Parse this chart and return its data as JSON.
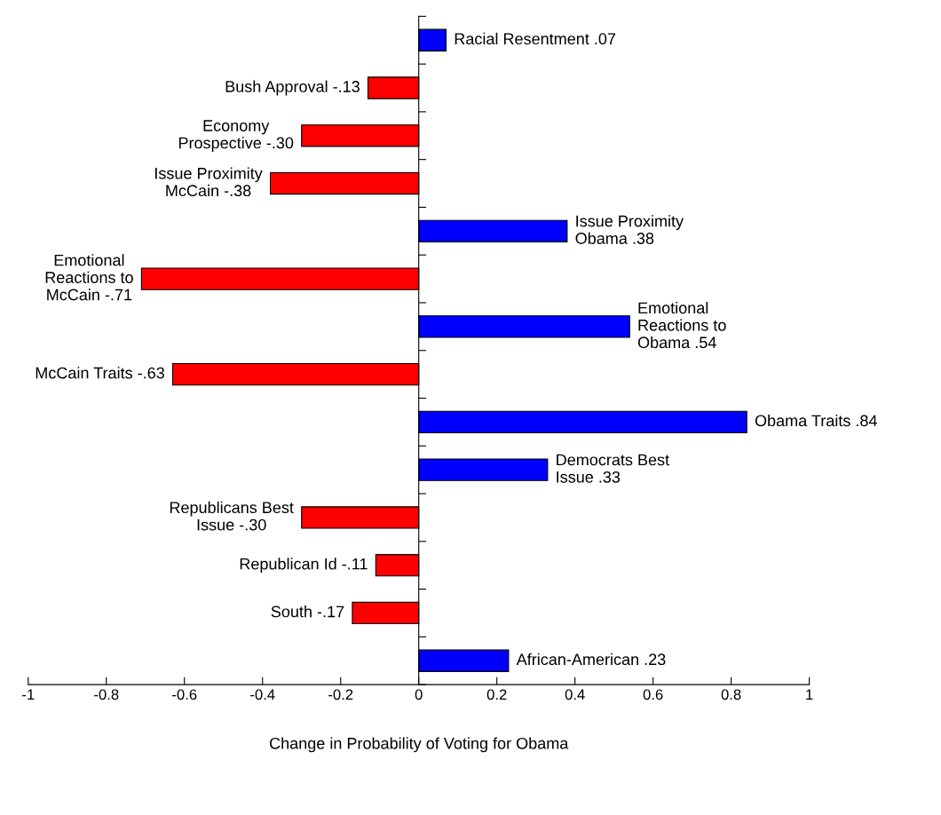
{
  "chart_data": {
    "type": "bar",
    "orientation": "horizontal",
    "xlabel": "Change in Probability of Voting for Obama",
    "categories": [
      "Racial Resentment",
      "Bush Approval",
      "Economy\nProspective",
      "Issue Proximity\nMcCain",
      "Issue Proximity\nObama",
      "Emotional\nReactions to\nMcCain",
      "Emotional\nReactions to\nObama",
      "McCain Traits",
      "Obama Traits",
      "Democrats Best\nIssue",
      "Republicans Best\nIssue",
      "Republican Id",
      "South",
      "African-American"
    ],
    "values": [
      0.07,
      -0.13,
      -0.3,
      -0.38,
      0.38,
      -0.71,
      0.54,
      -0.63,
      0.84,
      0.33,
      -0.3,
      -0.11,
      -0.17,
      0.23
    ],
    "value_labels": [
      ".07",
      "-.13",
      "-.30",
      "-.38",
      ".38",
      "-.71",
      ".54",
      "-.63",
      ".84",
      ".33",
      "-.30",
      "-.11",
      "-.17",
      ".23"
    ],
    "colors": [
      "#0000ff",
      "#ff0000",
      "#ff0000",
      "#ff0000",
      "#0000ff",
      "#ff0000",
      "#0000ff",
      "#ff0000",
      "#0000ff",
      "#0000ff",
      "#ff0000",
      "#ff0000",
      "#ff0000",
      "#0000ff"
    ],
    "xlim": [
      -1,
      1
    ],
    "xticks": [
      -1,
      -0.8,
      -0.6,
      -0.4,
      -0.2,
      0,
      0.2,
      0.4,
      0.6,
      0.8,
      1
    ],
    "tick_labels": "x"
  }
}
